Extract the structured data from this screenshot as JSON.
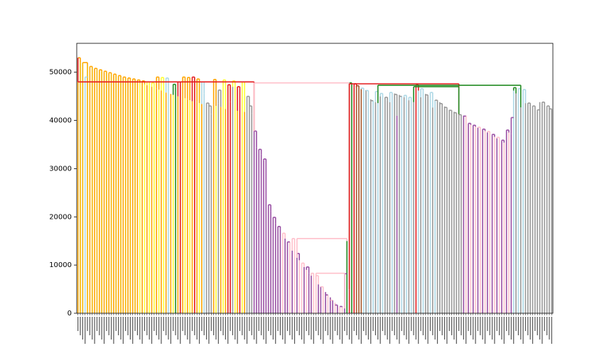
{
  "chart_data": {
    "type": "dendrogram",
    "title": "",
    "xlabel": "",
    "ylabel": "",
    "ylim": [
      0,
      56000
    ],
    "yticks": [
      {
        "value": 0,
        "label": "0"
      },
      {
        "value": 10000,
        "label": "10000"
      },
      {
        "value": 20000,
        "label": "20000"
      },
      {
        "value": 30000,
        "label": "30000"
      },
      {
        "value": 40000,
        "label": "40000"
      },
      {
        "value": 50000,
        "label": "50000"
      }
    ],
    "leaf_count": 200,
    "grid": false,
    "legend": "none",
    "colors": {
      "gold": "#f4b400",
      "orange": "#ffa500",
      "yellow": "#ffff33",
      "red": "#e41a1c",
      "green": "#228b22",
      "purple": "#984ea3",
      "pink": "#ffc0cb",
      "lightblue": "#add8e6",
      "gray": "#999999",
      "brown": "#a65628"
    },
    "leaf_colors": [
      "orange",
      "gold",
      "gold",
      "lightblue",
      "gold",
      "orange",
      "gold",
      "orange",
      "gold",
      "orange",
      "gold",
      "orange",
      "gold",
      "orange",
      "gold",
      "orange",
      "gold",
      "orange",
      "gold",
      "orange",
      "gold",
      "orange",
      "gold",
      "orange",
      "gold",
      "orange",
      "yellow",
      "orange",
      "yellow",
      "orange",
      "yellow",
      "orange",
      "yellow",
      "orange",
      "yellow",
      "orange",
      "yellow",
      "orange",
      "lightblue",
      "orange",
      "yellow",
      "green",
      "orange",
      "red",
      "orange",
      "yellow",
      "orange",
      "yellow",
      "orange",
      "red",
      "orange",
      "yellow",
      "orange",
      "lightblue",
      "gray",
      "gray",
      "gray",
      "orange",
      "yellow",
      "gray",
      "orange",
      "yellow",
      "orange",
      "red",
      "red",
      "gray",
      "yellow",
      "orange",
      "red",
      "yellow",
      "orange",
      "gray",
      "gray",
      "gray",
      "purple",
      "purple",
      "purple",
      "purple",
      "purple",
      "purple",
      "purple",
      "purple",
      "purple",
      "purple",
      "purple",
      "purple",
      "pink",
      "purple",
      "purple",
      "pink",
      "purple",
      "pink",
      "purple",
      "pink",
      "pink",
      "purple",
      "pink",
      "purple",
      "purple",
      "pink",
      "pink",
      "purple",
      "purple",
      "pink",
      "purple",
      "pink",
      "purple",
      "purple",
      "pink",
      "purple",
      "pink",
      "pink",
      "purple",
      "green",
      "red",
      "green",
      "red",
      "brown",
      "brown",
      "brown",
      "lightblue",
      "gray",
      "lightblue",
      "gray",
      "lightblue",
      "gray",
      "lightblue",
      "gray",
      "lightblue",
      "gray",
      "gray",
      "gray",
      "lightblue",
      "gray",
      "purple",
      "gray",
      "lightblue",
      "gray",
      "lightblue",
      "gray",
      "lightblue",
      "gray",
      "red",
      "lightblue",
      "gray",
      "lightblue",
      "gray",
      "gray",
      "lightblue",
      "gray",
      "lightblue",
      "gray",
      "gray",
      "gray",
      "gray",
      "gray",
      "gray",
      "gray",
      "gray",
      "gray",
      "gray",
      "gray",
      "purple",
      "pink",
      "purple",
      "pink",
      "purple",
      "pink",
      "purple",
      "pink",
      "purple",
      "pink",
      "purple",
      "pink",
      "purple",
      "pink",
      "purple",
      "pink",
      "purple",
      "pink",
      "purple",
      "pink",
      "purple",
      "lightblue",
      "gray",
      "lightblue",
      "gray",
      "lightblue",
      "gray",
      "gray",
      "gray",
      "gray",
      "gray",
      "gray",
      "gray",
      "gray",
      "gray",
      "gray",
      "gray",
      "gray"
    ],
    "leaf_heights": [
      53000,
      52000,
      52000,
      46500,
      51500,
      51000,
      51000,
      50700,
      50500,
      50300,
      50200,
      50000,
      49900,
      49700,
      49600,
      49400,
      49300,
      49100,
      49000,
      48800,
      48700,
      48500,
      48400,
      48200,
      48100,
      47900,
      47800,
      47600,
      47500,
      47300,
      47200,
      47000,
      46800,
      46600,
      46400,
      46200,
      46000,
      45800,
      46500,
      45500,
      45300,
      47000,
      45000,
      47500,
      44800,
      44600,
      44400,
      44200,
      44000,
      47800,
      43800,
      43600,
      43400,
      45600,
      43600,
      42800,
      41300,
      43200,
      43000,
      43600,
      42800,
      42600,
      42400,
      47400,
      43800,
      47000,
      44600,
      42000,
      46800,
      47000,
      41800,
      45000,
      43000,
      41500,
      37800,
      34400,
      34000,
      33000,
      31800,
      23800,
      22500,
      21200,
      19900,
      18700,
      18000,
      17400,
      16600,
      15500,
      14800,
      14800,
      13000,
      12400,
      11500,
      11000,
      10400,
      9600,
      9000,
      8300,
      7800,
      7400,
      6800,
      6000,
      5500,
      5000,
      4400,
      3800,
      3300,
      2700,
      2200,
      1700,
      1400,
      1300,
      1000,
      15000,
      5000,
      47500,
      47000,
      46800,
      46500,
      46500,
      46400,
      46300,
      44700,
      44400,
      44100,
      43800,
      43600,
      45000,
      44800,
      44500,
      44200,
      43800,
      45700,
      45600,
      41000,
      45300,
      45000,
      44800,
      44500,
      44200,
      44000,
      43800,
      47200,
      46200,
      44800,
      46000,
      45500,
      45000,
      44600,
      42700,
      44100,
      44000,
      43800,
      43400,
      42900,
      42500,
      42200,
      42000,
      41800,
      41500,
      41300,
      41200,
      41000,
      41000,
      39300,
      39100,
      38900,
      38700,
      38500,
      38300,
      38100,
      37800,
      37500,
      37200,
      36900,
      36600,
      36300,
      36000,
      35700,
      35400,
      37800,
      37500,
      37200,
      46200,
      45600,
      46500,
      42700,
      46300,
      43600,
      43100,
      42800,
      42500,
      42200,
      41900,
      43800,
      43500,
      43200,
      42900,
      42600,
      42300
    ],
    "merges": [
      {
        "left": 0,
        "right": 1,
        "height": 53000,
        "color": "orange"
      },
      {
        "left": 2,
        "right": 4,
        "height": 52000,
        "color": "orange"
      },
      {
        "left": 3,
        "right": 4,
        "height": 49000,
        "color": "lightblue"
      },
      {
        "left": 5,
        "right": 6,
        "height": 51200,
        "color": "orange"
      },
      {
        "left": 7,
        "right": 8,
        "height": 50800,
        "color": "orange"
      },
      {
        "left": 9,
        "right": 10,
        "height": 50500,
        "color": "orange"
      },
      {
        "left": 11,
        "right": 12,
        "height": 50200,
        "color": "orange"
      },
      {
        "left": 13,
        "right": 14,
        "height": 49900,
        "color": "orange"
      },
      {
        "left": 15,
        "right": 16,
        "height": 49600,
        "color": "orange"
      },
      {
        "left": 17,
        "right": 18,
        "height": 49300,
        "color": "orange"
      },
      {
        "left": 19,
        "right": 20,
        "height": 49000,
        "color": "orange"
      },
      {
        "left": 21,
        "right": 22,
        "height": 48800,
        "color": "orange"
      },
      {
        "left": 23,
        "right": 24,
        "height": 48600,
        "color": "orange"
      },
      {
        "left": 25,
        "right": 26,
        "height": 48400,
        "color": "orange"
      },
      {
        "left": 27,
        "right": 28,
        "height": 48200,
        "color": "orange"
      },
      {
        "left": 29,
        "right": 30,
        "height": 48000,
        "color": "yellow"
      },
      {
        "left": 31,
        "right": 32,
        "height": 47800,
        "color": "yellow"
      },
      {
        "left": 33,
        "right": 34,
        "height": 49000,
        "color": "orange"
      },
      {
        "left": 35,
        "right": 36,
        "height": 48900,
        "color": "yellow"
      },
      {
        "left": 37,
        "right": 38,
        "height": 48800,
        "color": "lightblue"
      },
      {
        "left": 40,
        "right": 41,
        "height": 47500,
        "color": "green"
      },
      {
        "left": 42,
        "right": 43,
        "height": 48000,
        "color": "red"
      },
      {
        "left": 44,
        "right": 45,
        "height": 49000,
        "color": "orange"
      },
      {
        "left": 46,
        "right": 47,
        "height": 48900,
        "color": "orange"
      },
      {
        "left": 48,
        "right": 49,
        "height": 49000,
        "color": "red"
      },
      {
        "left": 50,
        "right": 51,
        "height": 48600,
        "color": "orange"
      },
      {
        "left": 52,
        "right": 53,
        "height": 48000,
        "color": "lightblue"
      },
      {
        "left": 54,
        "right": 55,
        "height": 43600,
        "color": "gray"
      },
      {
        "left": 55,
        "right": 56,
        "height": 43000,
        "color": "gray"
      },
      {
        "left": 57,
        "right": 58,
        "height": 48500,
        "color": "orange"
      },
      {
        "left": 59,
        "right": 60,
        "height": 46300,
        "color": "gray"
      },
      {
        "left": 61,
        "right": 62,
        "height": 48400,
        "color": "yellow"
      },
      {
        "left": 63,
        "right": 64,
        "height": 47400,
        "color": "red"
      },
      {
        "left": 65,
        "right": 66,
        "height": 48200,
        "color": "yellow"
      },
      {
        "left": 67,
        "right": 68,
        "height": 47000,
        "color": "red"
      },
      {
        "left": 69,
        "right": 70,
        "height": 48000,
        "color": "yellow"
      },
      {
        "left": 71,
        "right": 72,
        "height": 45000,
        "color": "gray"
      },
      {
        "left": 72,
        "right": 73,
        "height": 43000,
        "color": "gray"
      },
      {
        "left": 74,
        "right": 75,
        "height": 37800,
        "color": "purple"
      },
      {
        "left": 76,
        "right": 77,
        "height": 34000,
        "color": "purple"
      },
      {
        "left": 78,
        "right": 79,
        "height": 32000,
        "color": "purple"
      },
      {
        "left": 80,
        "right": 81,
        "height": 22500,
        "color": "purple"
      },
      {
        "left": 82,
        "right": 83,
        "height": 19900,
        "color": "purple"
      },
      {
        "left": 84,
        "right": 85,
        "height": 18000,
        "color": "purple"
      },
      {
        "left": 86,
        "right": 87,
        "height": 16600,
        "color": "pink"
      },
      {
        "left": 88,
        "right": 89,
        "height": 14800,
        "color": "purple"
      },
      {
        "left": 90,
        "right": 91,
        "height": 15500,
        "color": "pink"
      },
      {
        "left": 92,
        "right": 93,
        "height": 12400,
        "color": "purple"
      },
      {
        "left": 94,
        "right": 95,
        "height": 10400,
        "color": "pink"
      },
      {
        "left": 96,
        "right": 97,
        "height": 9600,
        "color": "purple"
      },
      {
        "left": 98,
        "right": 99,
        "height": 8300,
        "color": "pink"
      },
      {
        "left": 100,
        "right": 101,
        "height": 7800,
        "color": "pink"
      },
      {
        "left": 102,
        "right": 103,
        "height": 5500,
        "color": "pink"
      },
      {
        "left": 104,
        "right": 105,
        "height": 3800,
        "color": "purple"
      },
      {
        "left": 106,
        "right": 107,
        "height": 2700,
        "color": "pink"
      },
      {
        "left": 108,
        "right": 109,
        "height": 1700,
        "color": "purple"
      },
      {
        "left": 110,
        "right": 111,
        "height": 1400,
        "color": "purple"
      },
      {
        "left": 112,
        "right": 113,
        "height": 8200,
        "color": "purple"
      },
      {
        "left": 114,
        "right": 115,
        "height": 47800,
        "color": "green"
      },
      {
        "left": 116,
        "right": 117,
        "height": 47600,
        "color": "red"
      },
      {
        "left": 117,
        "right": 118,
        "height": 47200,
        "color": "brown"
      },
      {
        "left": 119,
        "right": 120,
        "height": 46700,
        "color": "lightblue"
      },
      {
        "left": 121,
        "right": 122,
        "height": 46200,
        "color": "lightblue"
      },
      {
        "left": 123,
        "right": 124,
        "height": 44100,
        "color": "gray"
      },
      {
        "left": 125,
        "right": 126,
        "height": 46000,
        "color": "lightblue"
      },
      {
        "left": 127,
        "right": 128,
        "height": 45600,
        "color": "lightblue"
      },
      {
        "left": 129,
        "right": 130,
        "height": 44800,
        "color": "gray"
      },
      {
        "left": 131,
        "right": 132,
        "height": 45800,
        "color": "lightblue"
      },
      {
        "left": 133,
        "right": 134,
        "height": 45400,
        "color": "gray"
      },
      {
        "left": 135,
        "right": 136,
        "height": 45000,
        "color": "gray"
      },
      {
        "left": 137,
        "right": 138,
        "height": 45200,
        "color": "lightblue"
      },
      {
        "left": 139,
        "right": 140,
        "height": 44800,
        "color": "lightblue"
      },
      {
        "left": 142,
        "right": 143,
        "height": 47400,
        "color": "red"
      },
      {
        "left": 144,
        "right": 145,
        "height": 46600,
        "color": "lightblue"
      },
      {
        "left": 146,
        "right": 147,
        "height": 45300,
        "color": "gray"
      },
      {
        "left": 148,
        "right": 149,
        "height": 45800,
        "color": "lightblue"
      },
      {
        "left": 150,
        "right": 151,
        "height": 44200,
        "color": "gray"
      },
      {
        "left": 152,
        "right": 153,
        "height": 43500,
        "color": "gray"
      },
      {
        "left": 154,
        "right": 155,
        "height": 42700,
        "color": "gray"
      },
      {
        "left": 156,
        "right": 157,
        "height": 42100,
        "color": "gray"
      },
      {
        "left": 158,
        "right": 159,
        "height": 41600,
        "color": "gray"
      },
      {
        "left": 160,
        "right": 161,
        "height": 41200,
        "color": "gray"
      },
      {
        "left": 162,
        "right": 163,
        "height": 40900,
        "color": "purple"
      },
      {
        "left": 164,
        "right": 165,
        "height": 39400,
        "color": "purple"
      },
      {
        "left": 166,
        "right": 167,
        "height": 39000,
        "color": "purple"
      },
      {
        "left": 168,
        "right": 169,
        "height": 38600,
        "color": "pink"
      },
      {
        "left": 170,
        "right": 171,
        "height": 38200,
        "color": "purple"
      },
      {
        "left": 172,
        "right": 173,
        "height": 37700,
        "color": "pink"
      },
      {
        "left": 174,
        "right": 175,
        "height": 37100,
        "color": "purple"
      },
      {
        "left": 176,
        "right": 177,
        "height": 36500,
        "color": "pink"
      },
      {
        "left": 178,
        "right": 179,
        "height": 35900,
        "color": "purple"
      },
      {
        "left": 180,
        "right": 181,
        "height": 38000,
        "color": "purple"
      },
      {
        "left": 182,
        "right": 183,
        "height": 40600,
        "color": "purple"
      },
      {
        "left": 183,
        "right": 184,
        "height": 46800,
        "color": "green"
      },
      {
        "left": 185,
        "right": 186,
        "height": 46600,
        "color": "lightblue"
      },
      {
        "left": 187,
        "right": 188,
        "height": 46400,
        "color": "lightblue"
      },
      {
        "left": 189,
        "right": 190,
        "height": 43600,
        "color": "gray"
      },
      {
        "left": 191,
        "right": 192,
        "height": 43000,
        "color": "gray"
      },
      {
        "left": 193,
        "right": 194,
        "height": 42200,
        "color": "gray"
      },
      {
        "left": 195,
        "right": 196,
        "height": 43800,
        "color": "gray"
      },
      {
        "left": 197,
        "right": 198,
        "height": 43000,
        "color": "gray"
      },
      {
        "left": 198,
        "right": 199,
        "height": 42400,
        "color": "gray"
      }
    ],
    "upper_links": [
      {
        "x1": 0,
        "x2": 74,
        "height": 48000,
        "color": "red"
      },
      {
        "x1": 74,
        "x2": 114,
        "height": 47800,
        "color": "pink"
      },
      {
        "x1": 114,
        "x2": 160,
        "height": 47600,
        "color": "red"
      },
      {
        "x1": 126,
        "x2": 186,
        "height": 47300,
        "color": "green"
      },
      {
        "x1": 141,
        "x2": 160,
        "height": 47000,
        "color": "green"
      },
      {
        "x1": 92,
        "x2": 113,
        "height": 15500,
        "color": "pink"
      },
      {
        "x1": 100,
        "x2": 112,
        "height": 8300,
        "color": "pink"
      }
    ]
  }
}
